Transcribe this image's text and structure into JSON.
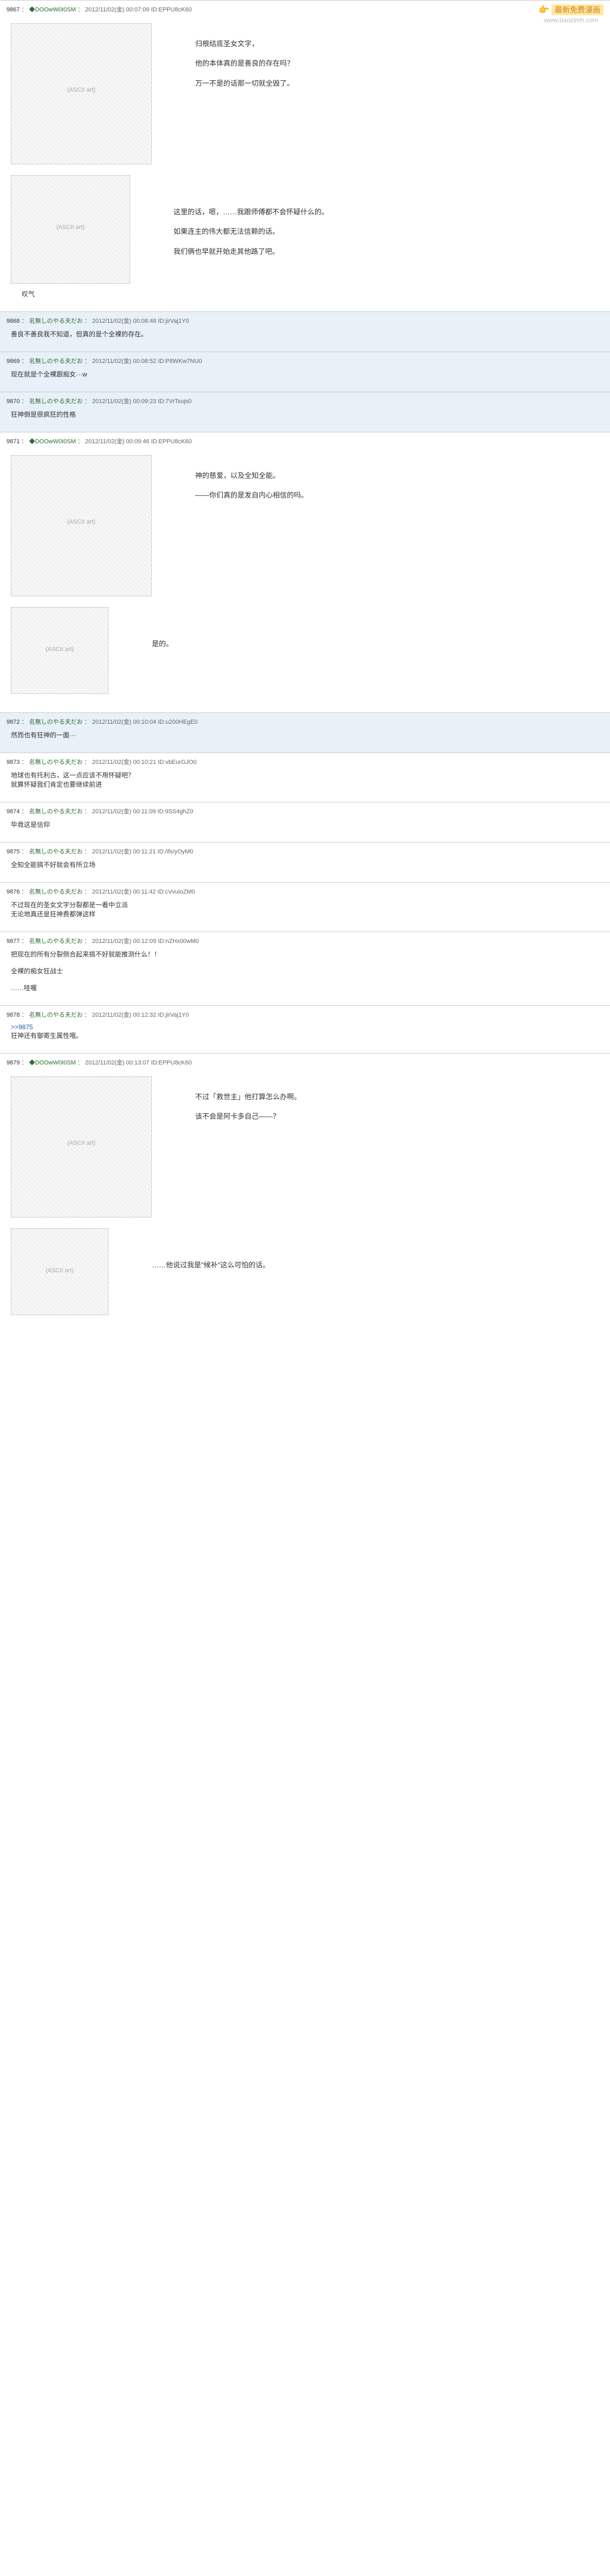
{
  "watermark": {
    "hand": "👉",
    "text": "最新免费漫画",
    "url": "www.baozimh.com"
  },
  "posts": [
    {
      "num": "9867",
      "name": "◆DOOwW0I0SM",
      "date": "2012/11/02(金) 00:07:09",
      "id": "ID:EPPU8cK60",
      "type": "main",
      "bg": "white",
      "blocks": [
        {
          "art": "face-large",
          "lines": [
            "归根结底圣女文字，",
            "他的本体真的是善良的存在吗？",
            "万一不是的话那一切就全毁了。"
          ]
        },
        {
          "art": "face-small",
          "lines": [
            "这里的话，嗯，……我跟师傅都不会怀疑什么的。",
            "如果连主的伟大都无法信赖的话。",
            "我们俩也早就开始走其他路了吧。"
          ],
          "caption": "叹气"
        }
      ]
    },
    {
      "num": "9868",
      "name": "名無しのやる夫だお",
      "date": "2012/11/02(金) 00:08:48",
      "id": "ID:jirVaj1Y0",
      "type": "reply",
      "bg": "blue",
      "body": "善良不善良我不知道，但真的是个全裸的存在。"
    },
    {
      "num": "9869",
      "name": "名無しのやる夫だお",
      "date": "2012/11/02(金) 00:08:52",
      "id": "ID:P8WKw7NU0",
      "type": "reply",
      "bg": "blue",
      "body": "现在就是个全裸跟痴女···w"
    },
    {
      "num": "9870",
      "name": "名無しのやる夫だお",
      "date": "2012/11/02(金) 00:09:23",
      "id": "ID:7VrTsujs0",
      "type": "reply",
      "bg": "blue",
      "body": "狂神倒是很疯狂的性格"
    },
    {
      "num": "9871",
      "name": "◆DOOwW0I0SM",
      "date": "2012/11/02(金) 00:09:46",
      "id": "ID:EPPU8cK60",
      "type": "main",
      "bg": "white",
      "blocks": [
        {
          "art": "face-large",
          "lines": [
            "神的慈爱，以及全知全能。",
            "——你们真的是发自内心相信的吗。"
          ]
        },
        {
          "art": "face-tiny",
          "lines": [
            "是的。"
          ]
        }
      ]
    },
    {
      "num": "9872",
      "name": "名無しのやる夫だお",
      "date": "2012/11/02(金) 00:10:04",
      "id": "ID:u200HEgE0",
      "type": "reply",
      "bg": "blue",
      "body": "然而也有狂神的一面···"
    },
    {
      "num": "9873",
      "name": "名無しのやる夫だお",
      "date": "2012/11/02(金) 00:10:21",
      "id": "ID:vbEurGJO0",
      "type": "reply",
      "bg": "white",
      "body": "地球也有托利古，这一点应该不用怀疑吧？\n就算怀疑我们肯定也要继续前进"
    },
    {
      "num": "9874",
      "name": "名無しのやる夫だお",
      "date": "2012/11/02(金) 00:11:09",
      "id": "ID:9SS4ghZ0",
      "type": "reply",
      "bg": "white",
      "body": "毕竟这是信仰"
    },
    {
      "num": "9875",
      "name": "名無しのやる夫だお",
      "date": "2012/11/02(金) 00:11:21",
      "id": "ID:/ifs/yOyM0",
      "type": "reply",
      "bg": "white",
      "body": "全知全能搞不好就会有所立场"
    },
    {
      "num": "9876",
      "name": "名無しのやる夫だお",
      "date": "2012/11/02(金) 00:11:42",
      "id": "ID:cVvuioZM0",
      "type": "reply",
      "bg": "white",
      "body": "不过现在的圣女文字分裂都是一看中立派\n无论地真还是狂神费都弹这样"
    },
    {
      "num": "9877",
      "name": "名無しのやる夫だお",
      "date": "2012/11/02(金) 00:12:09",
      "id": "ID:nZHx00wM0",
      "type": "reply",
      "bg": "white",
      "body": "把现在的所有分裂侧合起来搞不好就能推测什么！！\n\n全裸的痴女狂战士\n\n……哇喔"
    },
    {
      "num": "9878",
      "name": "名無しのやる夫だお",
      "date": "2012/11/02(金) 00:12:32",
      "id": "ID:jirVaj1Y0",
      "type": "reply",
      "bg": "white",
      "ref": ">>9875",
      "body": "狂神还有御寄生属性哦。"
    },
    {
      "num": "9879",
      "name": "◆DOOwW0I0SM",
      "date": "2012/11/02(金) 00:13:07",
      "id": "ID:EPPU8cK60",
      "type": "main",
      "bg": "white",
      "blocks": [
        {
          "art": "face-large",
          "lines": [
            "不过「救世主」他打算怎么办啊。",
            "该不会是阿卡多自己——？"
          ]
        },
        {
          "art": "face-tiny",
          "lines": [
            "……他说过我是\"候补\"这么可怕的话。"
          ]
        }
      ]
    }
  ]
}
